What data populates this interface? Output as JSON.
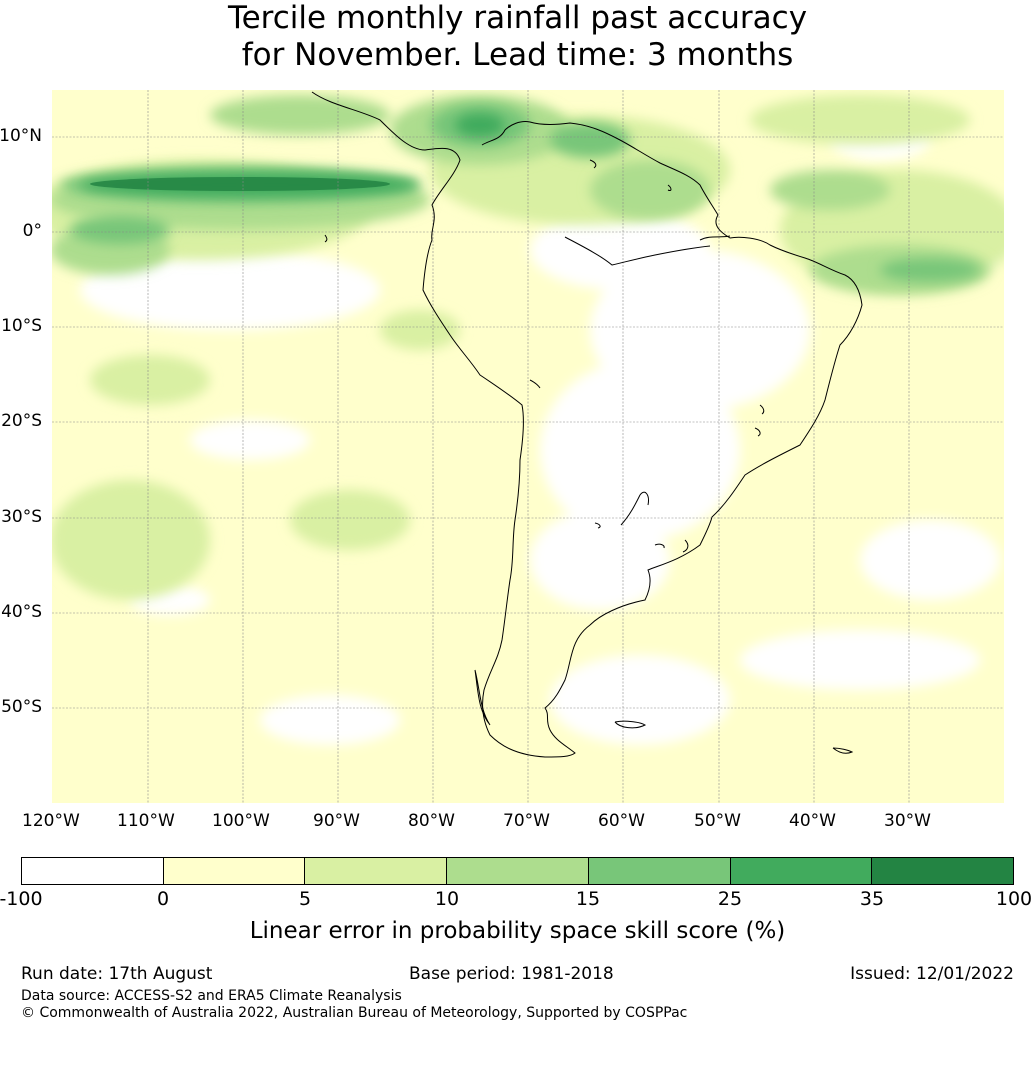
{
  "title": {
    "line1": "Tercile monthly rainfall past accuracy",
    "line2": "for November. Lead time: 3 months"
  },
  "map": {
    "lat_labels": [
      "10°N",
      "0°",
      "10°S",
      "20°S",
      "30°S",
      "40°S",
      "50°S"
    ],
    "lon_labels": [
      "120°W",
      "110°W",
      "100°W",
      "90°W",
      "80°W",
      "70°W",
      "60°W",
      "50°W",
      "40°W",
      "30°W"
    ],
    "colors": {
      "lt0": "#ffffff",
      "b0_5": "#ffffcc",
      "b5_10": "#d9f0a3",
      "b10_15": "#addd8e",
      "b15_25": "#78c679",
      "b25_35": "#41ab5d",
      "b35_100": "#238443"
    }
  },
  "colorbar": {
    "ticks": [
      "-100",
      "0",
      "5",
      "10",
      "15",
      "25",
      "35",
      "100"
    ],
    "colors": [
      "#ffffff",
      "#ffffcc",
      "#d9f0a3",
      "#addd8e",
      "#78c679",
      "#41ab5d",
      "#238443"
    ],
    "label": "Linear error in probability space skill score (%)"
  },
  "footer": {
    "run_date": "Run date: 17th August",
    "base_period": "Base period: 1981-2018",
    "issued": "Issued: 12/01/2022",
    "data_source": "Data source: ACCESS-S2 and ERA5 Climate Reanalysis",
    "copyright": "© Commonwealth of Australia 2022, Australian Bureau of Meteorology, Supported by COSPPac"
  }
}
